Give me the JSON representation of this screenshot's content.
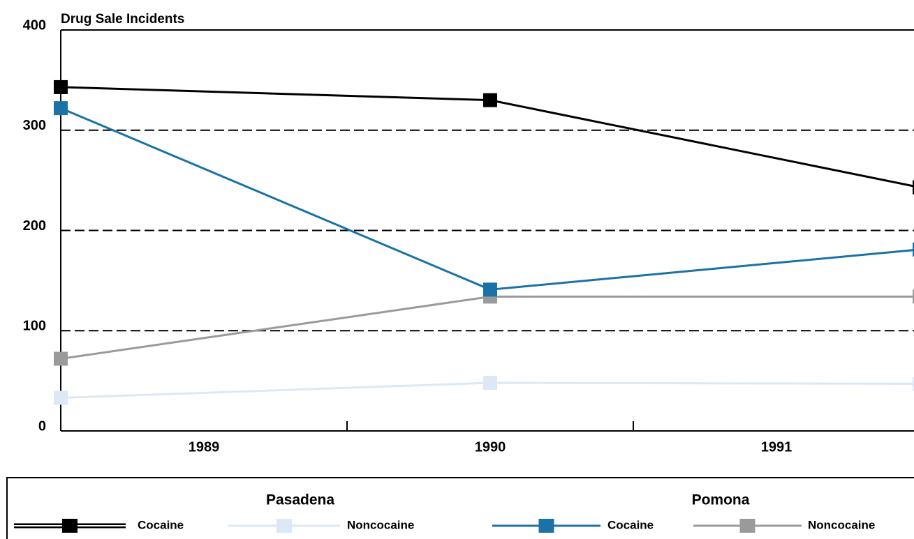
{
  "chart_data": {
    "type": "line",
    "y_axis_label": "Drug Sale Incidents",
    "categories": [
      "1989",
      "1990",
      "1991"
    ],
    "series": [
      {
        "name": "Cocaine",
        "group": "Pasadena",
        "color": "#000000",
        "values": [
          343,
          330,
          243
        ]
      },
      {
        "name": "Noncocaine",
        "color": "#dce8f5",
        "values": [
          33,
          48,
          47
        ]
      },
      {
        "name": "Cocaine",
        "group": "Pomona",
        "color": "#1a72a6",
        "values": [
          322,
          141,
          181
        ]
      },
      {
        "name": "Noncocaine",
        "color": "#9a9a9a",
        "values": [
          72,
          134,
          134
        ]
      }
    ],
    "ylim": [
      0,
      400
    ],
    "yticks": [
      0,
      100,
      200,
      300,
      400
    ],
    "grid": true
  }
}
